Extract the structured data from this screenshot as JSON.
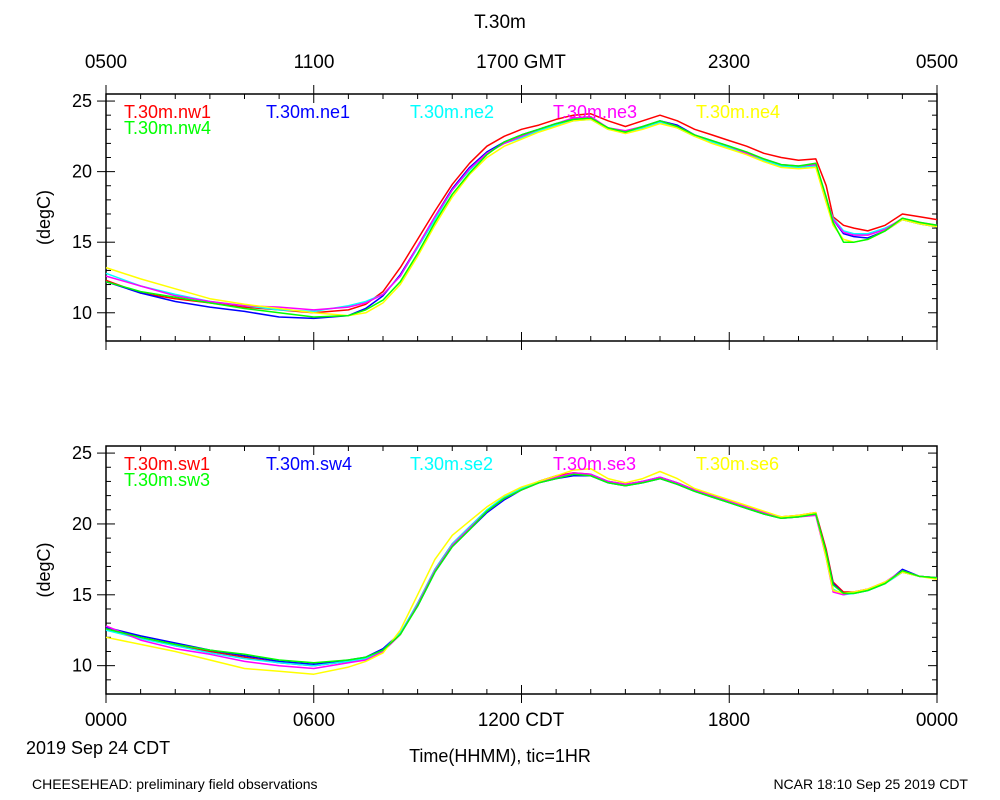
{
  "header": {
    "title": "T.30m"
  },
  "gmt_axis": {
    "labels": [
      "0500",
      "1100",
      "1700 GMT",
      "2300",
      "0500"
    ]
  },
  "cdt_axis": {
    "labels": [
      "0000",
      "0600",
      "1200 CDT",
      "1800",
      "0000"
    ]
  },
  "date_label": "2019 Sep 24 CDT",
  "xlabel": "Time(HHMM), tic=1HR",
  "footer": {
    "left": "CHEESEHEAD: preliminary field observations",
    "right": "NCAR 18:10 Sep 25 2019 CDT"
  },
  "colors": {
    "red": "#ff0000",
    "blue": "#0000ff",
    "cyan": "#00ffff",
    "magenta": "#ff00ff",
    "yellow": "#ffff00",
    "green": "#00ff00"
  },
  "chart_data": [
    {
      "type": "line",
      "name": "top",
      "title": "T.30m",
      "ylabel": "(degC)",
      "xlabel": "Time(HHMM), tic=1HR",
      "x_unit": "hours since 0000 CDT",
      "xlim": [
        0,
        24
      ],
      "ylim": [
        8,
        25.5
      ],
      "yticks": [
        10,
        15,
        20,
        25
      ],
      "x": [
        0,
        1,
        2,
        3,
        4,
        5,
        6,
        7,
        7.5,
        8,
        8.5,
        9,
        9.5,
        10,
        10.5,
        11,
        11.5,
        12,
        12.5,
        13,
        13.5,
        14,
        14.5,
        15,
        15.5,
        16,
        16.5,
        17,
        17.5,
        18,
        18.5,
        19,
        19.5,
        20,
        20.5,
        20.8,
        21,
        21.3,
        21.6,
        22,
        22.5,
        23,
        23.5,
        24
      ],
      "series": [
        {
          "name": "T.30m.nw1",
          "color": "#ff0000",
          "values": [
            12.3,
            11.4,
            11.0,
            10.7,
            10.4,
            10.2,
            10.0,
            10.2,
            10.6,
            11.5,
            13.2,
            15.2,
            17.2,
            19.1,
            20.6,
            21.8,
            22.5,
            23.0,
            23.3,
            23.7,
            24.0,
            24.1,
            23.6,
            23.2,
            23.6,
            24.0,
            23.6,
            23.0,
            22.6,
            22.2,
            21.8,
            21.3,
            21.0,
            20.8,
            20.9,
            19.0,
            16.8,
            16.2,
            16.0,
            15.8,
            16.2,
            17.0,
            16.8,
            16.6
          ]
        },
        {
          "name": "T.30m.ne1",
          "color": "#0000ff",
          "values": [
            12.2,
            11.4,
            10.8,
            10.4,
            10.1,
            9.7,
            9.6,
            9.8,
            10.3,
            11.2,
            12.7,
            14.7,
            16.8,
            18.8,
            20.3,
            21.4,
            22.1,
            22.6,
            23.0,
            23.4,
            23.6,
            23.8,
            23.1,
            22.8,
            23.1,
            23.6,
            23.3,
            22.6,
            22.1,
            21.7,
            21.3,
            20.8,
            20.4,
            20.3,
            20.5,
            18.0,
            16.6,
            15.6,
            15.4,
            15.3,
            15.8,
            16.6,
            16.3,
            16.1
          ]
        },
        {
          "name": "T.30m.ne2",
          "color": "#00ffff",
          "values": [
            12.8,
            11.9,
            11.3,
            10.8,
            10.5,
            10.2,
            10.1,
            10.5,
            10.8,
            11.3,
            12.6,
            14.6,
            16.6,
            18.7,
            20.1,
            21.3,
            22.0,
            22.4,
            22.9,
            23.3,
            23.6,
            23.7,
            23.0,
            22.8,
            23.1,
            23.5,
            23.1,
            22.5,
            22.1,
            21.7,
            21.3,
            20.8,
            20.4,
            20.3,
            20.4,
            18.0,
            16.7,
            15.8,
            15.6,
            15.6,
            16.0,
            16.6,
            16.3,
            16.1
          ]
        },
        {
          "name": "T.30m.ne3",
          "color": "#ff00ff",
          "values": [
            12.6,
            11.9,
            11.2,
            10.8,
            10.5,
            10.4,
            10.2,
            10.4,
            10.7,
            11.3,
            12.6,
            14.7,
            16.8,
            18.7,
            20.2,
            21.3,
            22.0,
            22.5,
            23.0,
            23.4,
            23.8,
            23.9,
            23.1,
            22.9,
            23.2,
            23.6,
            23.2,
            22.6,
            22.2,
            21.8,
            21.3,
            20.9,
            20.5,
            20.4,
            20.5,
            18.1,
            16.6,
            15.7,
            15.5,
            15.5,
            15.9,
            16.7,
            16.4,
            16.2
          ]
        },
        {
          "name": "T.30m.ne4",
          "color": "#ffff00",
          "values": [
            13.2,
            12.4,
            11.7,
            11.0,
            10.6,
            10.3,
            10.0,
            9.8,
            10.0,
            10.7,
            12.0,
            14.0,
            16.2,
            18.2,
            19.8,
            21.0,
            21.8,
            22.3,
            22.8,
            23.2,
            23.6,
            23.7,
            23.0,
            22.7,
            23.0,
            23.4,
            23.1,
            22.5,
            22.0,
            21.6,
            21.2,
            20.7,
            20.3,
            20.2,
            20.3,
            17.8,
            16.2,
            15.2,
            15.0,
            15.2,
            15.8,
            16.6,
            16.3,
            16.1
          ]
        },
        {
          "name": "T.30m.nw4",
          "color": "#00ff00",
          "values": [
            12.2,
            11.5,
            11.1,
            10.7,
            10.3,
            10.0,
            9.7,
            9.8,
            10.2,
            10.9,
            12.2,
            14.2,
            16.4,
            18.4,
            19.9,
            21.2,
            22.1,
            22.6,
            23.0,
            23.4,
            23.7,
            23.8,
            23.1,
            22.8,
            23.2,
            23.6,
            23.2,
            22.6,
            22.2,
            21.8,
            21.4,
            20.9,
            20.5,
            20.4,
            20.6,
            18.2,
            16.4,
            15.0,
            15.0,
            15.2,
            15.8,
            16.7,
            16.4,
            16.2
          ]
        }
      ]
    },
    {
      "type": "line",
      "name": "bottom",
      "ylabel": "(degC)",
      "xlabel": "Time(HHMM), tic=1HR",
      "x_unit": "hours since 0000 CDT",
      "xlim": [
        0,
        24
      ],
      "ylim": [
        8,
        25.5
      ],
      "yticks": [
        10,
        15,
        20,
        25
      ],
      "x": [
        0,
        1,
        2,
        3,
        4,
        5,
        6,
        7,
        7.5,
        8,
        8.5,
        9,
        9.5,
        10,
        10.5,
        11,
        11.5,
        12,
        12.5,
        13,
        13.5,
        14,
        14.5,
        15,
        15.5,
        16,
        16.5,
        17,
        17.5,
        18,
        18.5,
        19,
        19.5,
        20,
        20.5,
        20.8,
        21,
        21.3,
        21.6,
        22,
        22.5,
        23,
        23.5,
        24
      ],
      "series": [
        {
          "name": "T.30m.sw1",
          "color": "#ff0000",
          "values": [
            12.6,
            12.0,
            11.4,
            11.0,
            10.6,
            10.2,
            10.0,
            10.3,
            10.5,
            11.0,
            12.2,
            14.4,
            16.8,
            18.6,
            19.8,
            20.9,
            21.8,
            22.5,
            23.0,
            23.4,
            23.6,
            23.5,
            23.0,
            22.8,
            23.0,
            23.3,
            22.9,
            22.4,
            22.0,
            21.6,
            21.2,
            20.8,
            20.5,
            20.6,
            20.8,
            18.2,
            15.9,
            15.2,
            15.2,
            15.4,
            15.8,
            16.6,
            16.3,
            16.2
          ]
        },
        {
          "name": "T.30m.sw4",
          "color": "#0000ff",
          "values": [
            12.7,
            12.1,
            11.6,
            11.1,
            10.7,
            10.3,
            10.1,
            10.4,
            10.6,
            11.2,
            12.3,
            14.2,
            16.6,
            18.4,
            19.6,
            20.8,
            21.7,
            22.4,
            22.9,
            23.2,
            23.4,
            23.4,
            22.9,
            22.7,
            22.9,
            23.2,
            22.8,
            22.3,
            21.9,
            21.5,
            21.1,
            20.7,
            20.4,
            20.5,
            20.7,
            18.0,
            15.8,
            15.1,
            15.1,
            15.3,
            15.8,
            16.8,
            16.3,
            16.2
          ]
        },
        {
          "name": "T.30m.se2",
          "color": "#00ffff",
          "values": [
            12.5,
            11.9,
            11.4,
            10.9,
            10.5,
            10.2,
            10.0,
            10.3,
            10.5,
            11.1,
            12.3,
            14.4,
            16.8,
            18.6,
            19.8,
            21.0,
            21.9,
            22.5,
            23.0,
            23.3,
            23.5,
            23.5,
            23.0,
            22.8,
            23.0,
            23.3,
            22.9,
            22.4,
            22.0,
            21.6,
            21.2,
            20.8,
            20.4,
            20.5,
            20.7,
            17.8,
            15.4,
            15.0,
            15.1,
            15.3,
            15.8,
            16.6,
            16.3,
            16.2
          ]
        },
        {
          "name": "T.30m.se3",
          "color": "#ff00ff",
          "values": [
            12.8,
            11.8,
            11.2,
            10.8,
            10.3,
            10.0,
            9.8,
            10.2,
            10.4,
            11.0,
            12.2,
            14.3,
            16.7,
            18.5,
            19.7,
            20.9,
            21.8,
            22.4,
            22.9,
            23.3,
            23.6,
            23.5,
            23.0,
            22.8,
            23.0,
            23.3,
            22.9,
            22.4,
            22.0,
            21.6,
            21.2,
            20.8,
            20.4,
            20.5,
            20.6,
            17.6,
            15.2,
            15.0,
            15.2,
            15.4,
            15.9,
            16.7,
            16.3,
            16.2
          ]
        },
        {
          "name": "T.30m.se6",
          "color": "#ffff00",
          "values": [
            12.0,
            11.5,
            11.0,
            10.4,
            9.8,
            9.6,
            9.4,
            9.9,
            10.3,
            10.9,
            12.5,
            15.0,
            17.5,
            19.2,
            20.2,
            21.2,
            22.0,
            22.6,
            23.0,
            23.4,
            23.8,
            23.9,
            23.2,
            22.9,
            23.2,
            23.7,
            23.2,
            22.5,
            22.1,
            21.7,
            21.3,
            20.9,
            20.5,
            20.6,
            20.8,
            17.6,
            15.3,
            15.1,
            15.2,
            15.4,
            15.9,
            16.6,
            16.3,
            16.1
          ]
        },
        {
          "name": "T.30m.sw3",
          "color": "#00ff00",
          "values": [
            12.6,
            12.0,
            11.5,
            11.1,
            10.8,
            10.4,
            10.2,
            10.4,
            10.6,
            11.1,
            12.2,
            14.2,
            16.6,
            18.4,
            19.6,
            20.9,
            21.8,
            22.4,
            22.9,
            23.2,
            23.5,
            23.4,
            22.9,
            22.7,
            22.9,
            23.2,
            22.8,
            22.3,
            21.9,
            21.5,
            21.1,
            20.7,
            20.4,
            20.5,
            20.7,
            18.0,
            15.7,
            15.1,
            15.1,
            15.3,
            15.8,
            16.7,
            16.3,
            16.2
          ]
        }
      ]
    }
  ]
}
